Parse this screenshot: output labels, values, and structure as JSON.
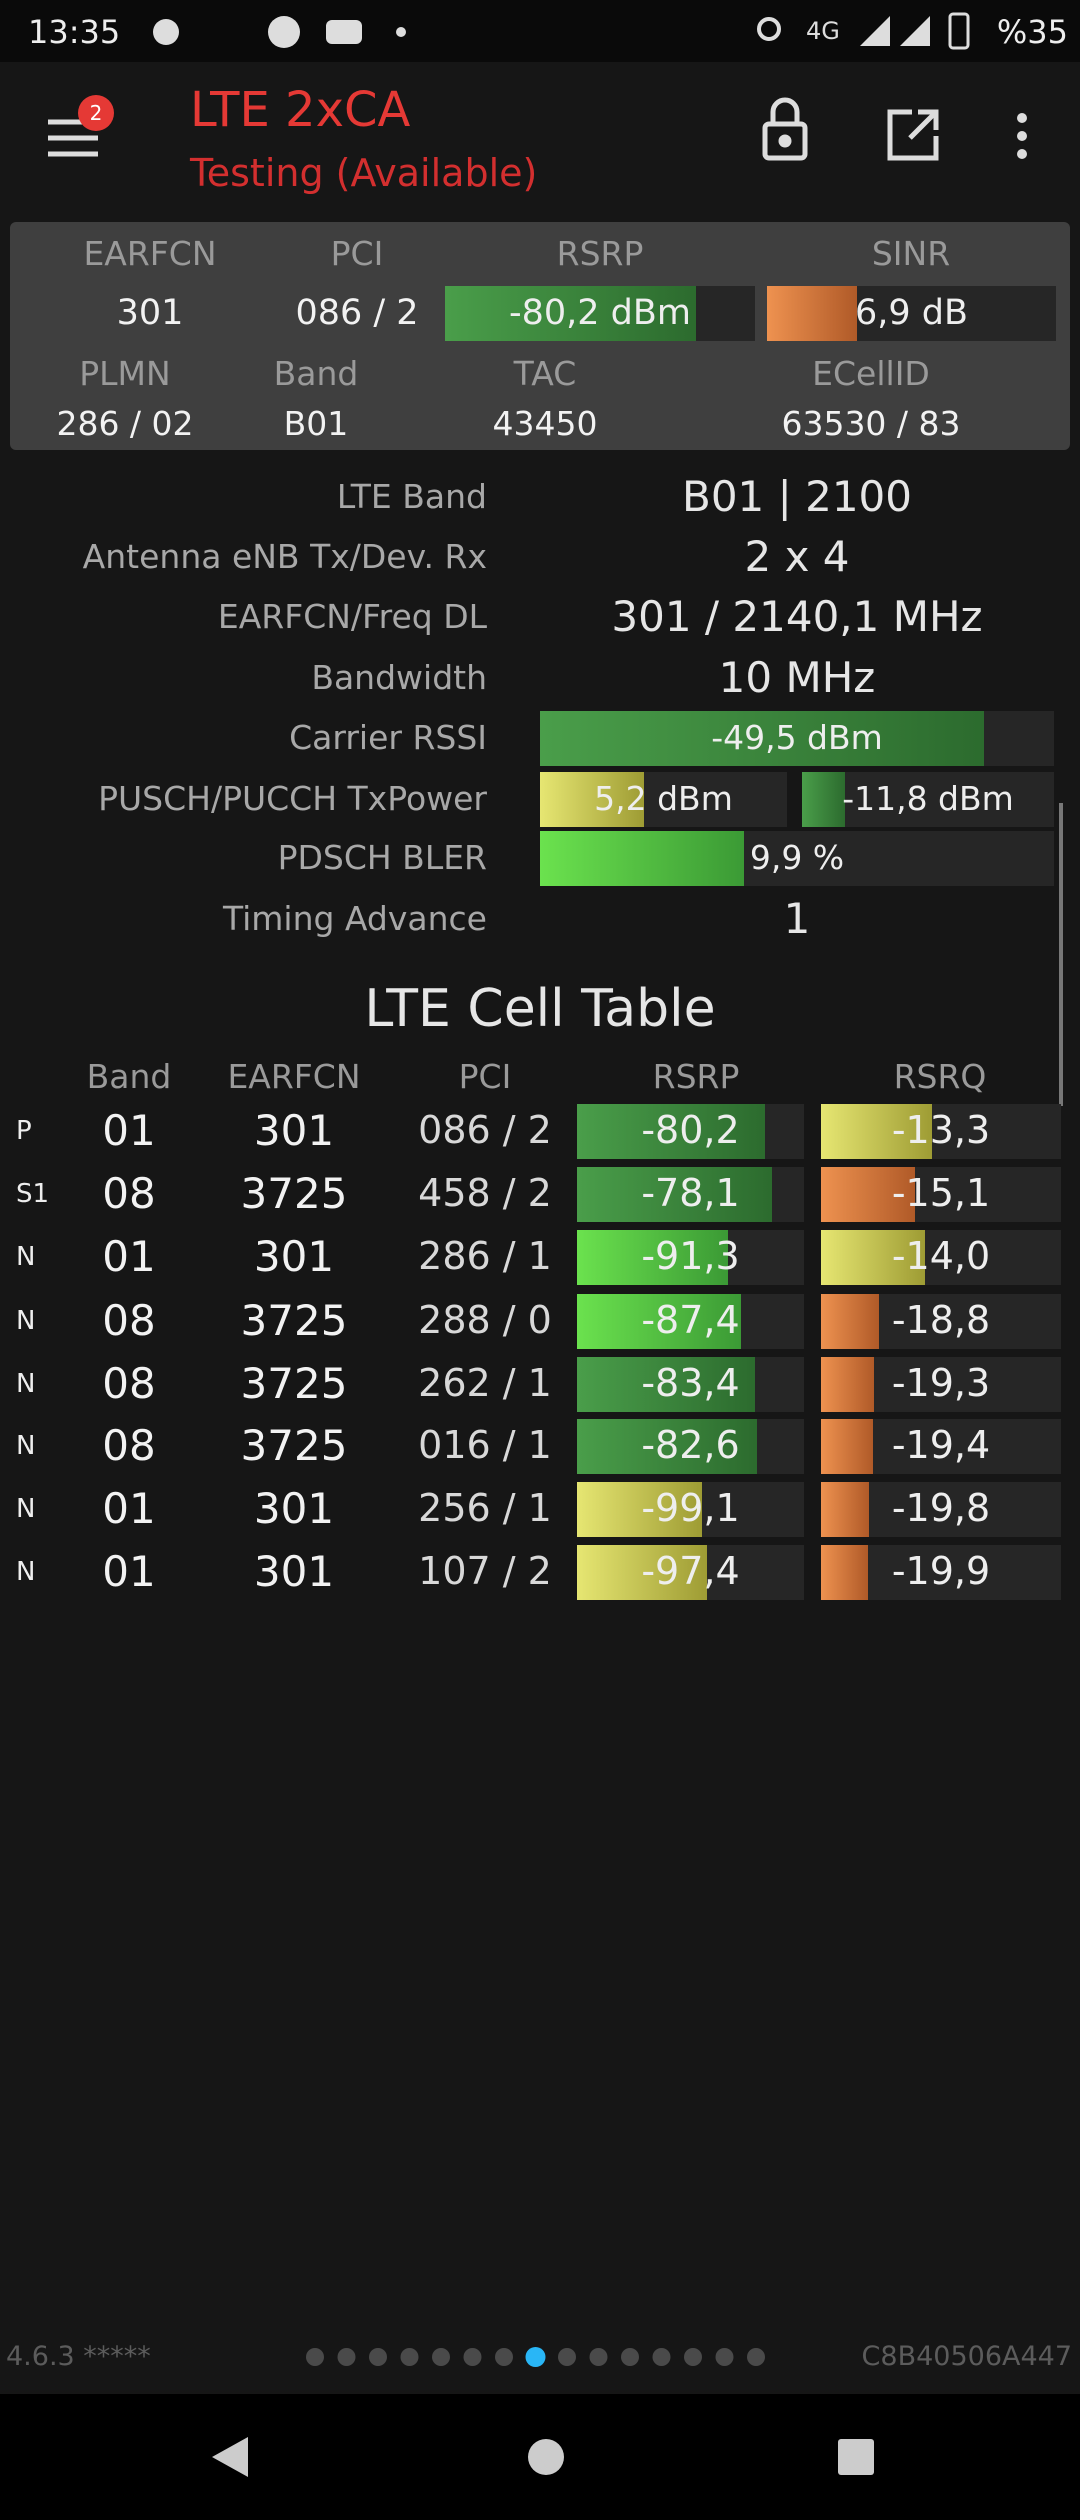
{
  "status_bar": {
    "time": "13:35",
    "network": "4G",
    "battery": "%35"
  },
  "header": {
    "badge": "2",
    "title": "LTE 2xCA",
    "subtitle": "Testing (Available)"
  },
  "summary": {
    "labels1": [
      "EARFCN",
      "PCI",
      "RSRP",
      "SINR"
    ],
    "values1": [
      "301",
      "086 / 2",
      "-80,2 dBm",
      "6,9 dB"
    ],
    "labels2": [
      "PLMN",
      "Band",
      "TAC",
      "ECellID"
    ],
    "values2": [
      "286 / 02",
      "B01",
      "43450",
      "63530 / 83"
    ]
  },
  "details": [
    {
      "label": "LTE Band",
      "value": "B01 | 2100"
    },
    {
      "label": "Antenna eNB Tx/Dev. Rx",
      "value": "2 x 4"
    },
    {
      "label": "EARFCN/Freq DL",
      "value": "301 / 2140,1 MHz"
    },
    {
      "label": "Bandwidth",
      "value": "10 MHz"
    },
    {
      "label": "Carrier RSSI",
      "value": "-49,5 dBm"
    },
    {
      "label": "PUSCH/PUCCH TxPower",
      "value": "5,2 dBm",
      "value_2": "-11,8 dBm"
    },
    {
      "label": "PDSCH BLER",
      "value": "9,9 %"
    },
    {
      "label": "Timing Advance",
      "value": "1"
    }
  ],
  "cell_table": {
    "title": "LTE Cell Table",
    "columns": [
      "Band",
      "EARFCN",
      "PCI",
      "RSRP",
      "RSRQ"
    ],
    "rows": [
      [
        "P",
        "01",
        "301",
        "086 / 2",
        "-80,2",
        "-13,3"
      ],
      [
        "S1",
        "08",
        "3725",
        "458 / 2",
        "-78,1",
        "-15,1"
      ],
      [
        "N",
        "01",
        "301",
        "286 / 1",
        "-91,3",
        "-14,0"
      ],
      [
        "N",
        "08",
        "3725",
        "288 / 0",
        "-87,4",
        "-18,8"
      ],
      [
        "N",
        "08",
        "3725",
        "262 / 1",
        "-83,4",
        "-19,3"
      ],
      [
        "N",
        "08",
        "3725",
        "016 / 1",
        "-82,6",
        "-19,4"
      ],
      [
        "N",
        "01",
        "301",
        "256 / 1",
        "-99,1",
        "-19,8"
      ],
      [
        "N",
        "01",
        "301",
        "107 / 2",
        "-97,4",
        "-19,9"
      ]
    ]
  },
  "footer": {
    "version": "4.6.3 *****",
    "device_id": "C8B40506A447"
  }
}
